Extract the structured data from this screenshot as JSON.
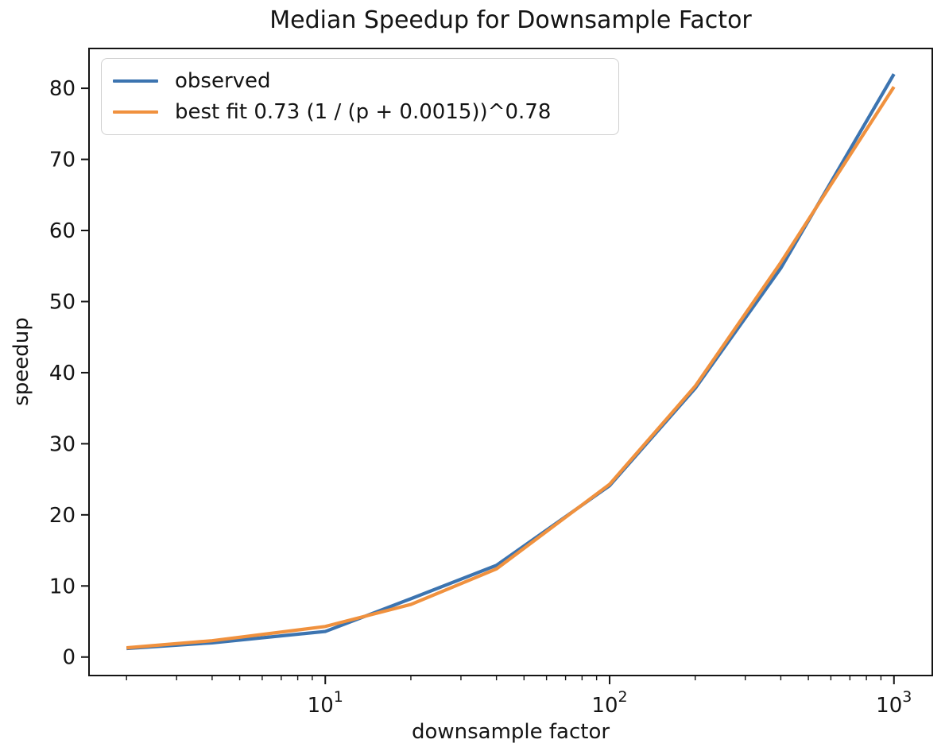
{
  "figure": {
    "title": "Median Speedup for Downsample Factor",
    "xlabel": "downsample factor",
    "ylabel": "speedup"
  },
  "legend": {
    "position": "upper left",
    "entries": [
      {
        "key": "observed",
        "label": "observed",
        "color": "#3c74b0"
      },
      {
        "key": "best_fit",
        "label": "best fit 0.73 (1 / (p + 0.0015))^0.78",
        "color": "#f0913e"
      }
    ]
  },
  "colors": {
    "observed_line": "#3c74b0",
    "best_fit_line": "#f0913e",
    "axis": "#141414",
    "legend_border": "#cfcfcf",
    "background": "#ffffff"
  },
  "chart_data": {
    "type": "line",
    "title": "Median Speedup for Downsample Factor",
    "xlabel": "downsample factor",
    "ylabel": "speedup",
    "x_scale": "log",
    "grid": false,
    "legend_position": "upper left",
    "x": [
      2,
      4,
      10,
      20,
      40,
      100,
      200,
      400,
      1000
    ],
    "series": [
      {
        "key": "observed",
        "name": "observed",
        "color": "#3c74b0",
        "values": [
          1.2,
          2.0,
          3.6,
          8.2,
          12.9,
          24.1,
          37.8,
          54.7,
          82.0
        ]
      },
      {
        "key": "best_fit",
        "name": "best fit 0.73 (1 / (p + 0.0015))^0.78",
        "color": "#f0913e",
        "values": [
          1.3,
          2.3,
          4.3,
          7.4,
          12.4,
          24.3,
          38.1,
          55.5,
          80.2
        ]
      }
    ],
    "xlim": [
      1.476,
      1364
    ],
    "ylim": [
      -2.6,
      85.6
    ],
    "x_major_ticks": [
      {
        "value": 10,
        "base": "10",
        "exp": "1"
      },
      {
        "value": 100,
        "base": "10",
        "exp": "2"
      },
      {
        "value": 1000,
        "base": "10",
        "exp": "3"
      }
    ],
    "x_minor_ticks": [
      2,
      3,
      4,
      5,
      6,
      7,
      8,
      9,
      20,
      30,
      40,
      50,
      60,
      70,
      80,
      90,
      200,
      300,
      400,
      500,
      600,
      700,
      800,
      900
    ],
    "y_ticks": [
      0,
      10,
      20,
      30,
      40,
      50,
      60,
      70,
      80
    ]
  }
}
